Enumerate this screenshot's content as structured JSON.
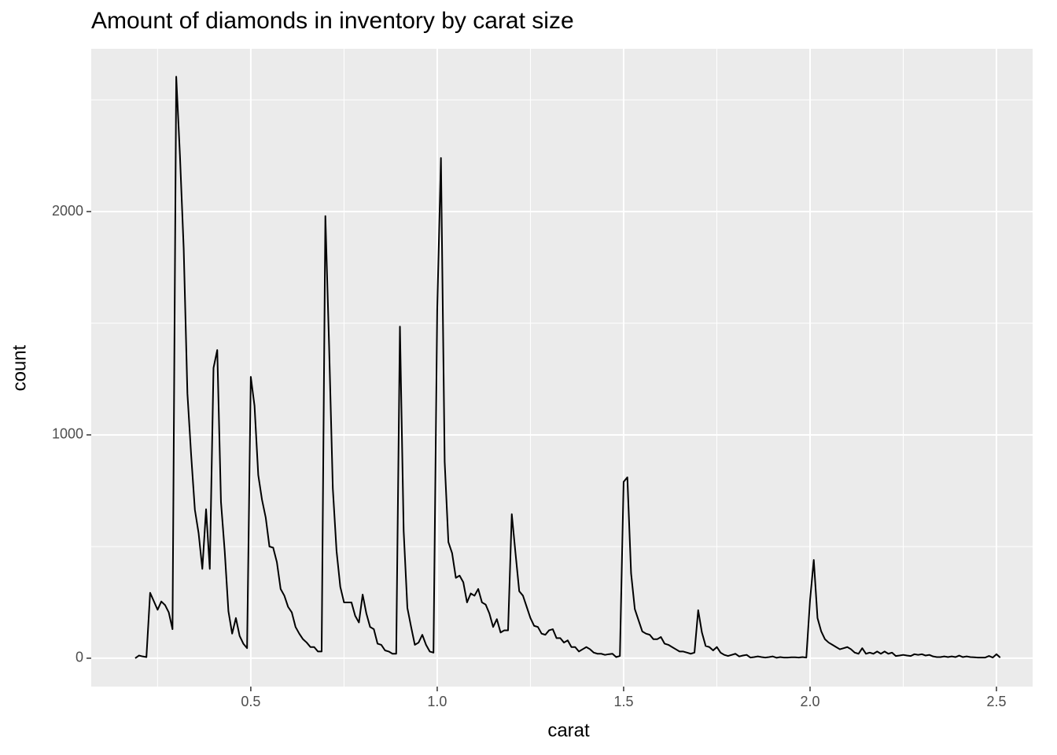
{
  "chart_data": {
    "type": "line",
    "title": "Amount of diamonds in inventory by carat size",
    "x_label": "carat",
    "y_label": "count",
    "x": [
      0.19,
      0.2,
      0.21,
      0.22,
      0.23,
      0.24,
      0.25,
      0.26,
      0.27,
      0.28,
      0.29,
      0.3,
      0.31,
      0.32,
      0.33,
      0.34,
      0.35,
      0.36,
      0.37,
      0.38,
      0.39,
      0.4,
      0.41,
      0.42,
      0.43,
      0.44,
      0.45,
      0.46,
      0.47,
      0.48,
      0.49,
      0.5,
      0.51,
      0.52,
      0.53,
      0.54,
      0.55,
      0.56,
      0.57,
      0.58,
      0.59,
      0.6,
      0.61,
      0.62,
      0.63,
      0.64,
      0.65,
      0.66,
      0.67,
      0.68,
      0.69,
      0.7,
      0.71,
      0.72,
      0.73,
      0.74,
      0.75,
      0.76,
      0.77,
      0.78,
      0.79,
      0.8,
      0.81,
      0.82,
      0.83,
      0.84,
      0.85,
      0.86,
      0.87,
      0.88,
      0.89,
      0.9,
      0.91,
      0.92,
      0.93,
      0.94,
      0.95,
      0.96,
      0.97,
      0.98,
      0.99,
      1.0,
      1.01,
      1.02,
      1.03,
      1.04,
      1.05,
      1.06,
      1.07,
      1.08,
      1.09,
      1.1,
      1.11,
      1.12,
      1.13,
      1.14,
      1.15,
      1.16,
      1.17,
      1.18,
      1.19,
      1.2,
      1.21,
      1.22,
      1.23,
      1.24,
      1.25,
      1.26,
      1.27,
      1.28,
      1.29,
      1.3,
      1.31,
      1.32,
      1.33,
      1.34,
      1.35,
      1.36,
      1.37,
      1.38,
      1.39,
      1.4,
      1.41,
      1.42,
      1.43,
      1.44,
      1.45,
      1.46,
      1.47,
      1.48,
      1.49,
      1.5,
      1.51,
      1.52,
      1.53,
      1.54,
      1.55,
      1.56,
      1.57,
      1.58,
      1.59,
      1.6,
      1.61,
      1.62,
      1.63,
      1.64,
      1.65,
      1.66,
      1.67,
      1.68,
      1.69,
      1.7,
      1.71,
      1.72,
      1.73,
      1.74,
      1.75,
      1.76,
      1.77,
      1.78,
      1.79,
      1.8,
      1.81,
      1.82,
      1.83,
      1.84,
      1.85,
      1.86,
      1.87,
      1.88,
      1.89,
      1.9,
      1.91,
      1.92,
      1.93,
      1.94,
      1.95,
      1.96,
      1.97,
      1.98,
      1.99,
      2.0,
      2.01,
      2.02,
      2.03,
      2.04,
      2.05,
      2.06,
      2.07,
      2.08,
      2.09,
      2.1,
      2.11,
      2.12,
      2.13,
      2.14,
      2.15,
      2.16,
      2.17,
      2.18,
      2.19,
      2.2,
      2.21,
      2.22,
      2.23,
      2.24,
      2.25,
      2.26,
      2.27,
      2.28,
      2.29,
      2.3,
      2.31,
      2.32,
      2.33,
      2.34,
      2.35,
      2.36,
      2.37,
      2.38,
      2.39,
      2.4,
      2.41,
      2.42,
      2.43,
      2.44,
      2.45,
      2.46,
      2.47,
      2.48,
      2.49,
      2.5,
      2.51
    ],
    "series": [
      {
        "name": "count",
        "color": "#000000",
        "values": [
          0,
          12,
          8,
          5,
          293,
          255,
          217,
          254,
          238,
          205,
          130,
          2604,
          2250,
          1835,
          1185,
          910,
          665,
          560,
          400,
          667,
          400,
          1300,
          1380,
          700,
          480,
          210,
          110,
          180,
          100,
          65,
          45,
          1260,
          1130,
          820,
          710,
          630,
          500,
          495,
          430,
          310,
          280,
          230,
          205,
          140,
          110,
          85,
          70,
          50,
          50,
          30,
          30,
          1980,
          1400,
          760,
          480,
          320,
          250,
          250,
          250,
          190,
          160,
          285,
          200,
          140,
          130,
          65,
          60,
          35,
          30,
          20,
          20,
          1485,
          570,
          225,
          140,
          60,
          70,
          105,
          60,
          30,
          25,
          1560,
          2240,
          880,
          520,
          470,
          360,
          370,
          340,
          250,
          290,
          280,
          310,
          250,
          240,
          200,
          140,
          175,
          115,
          125,
          125,
          645,
          470,
          300,
          280,
          230,
          180,
          145,
          140,
          110,
          105,
          125,
          130,
          90,
          90,
          70,
          80,
          50,
          50,
          30,
          40,
          50,
          40,
          25,
          20,
          20,
          15,
          18,
          20,
          5,
          10,
          790,
          810,
          380,
          220,
          170,
          120,
          110,
          105,
          85,
          85,
          95,
          65,
          60,
          50,
          40,
          30,
          30,
          25,
          20,
          25,
          215,
          115,
          55,
          50,
          35,
          50,
          25,
          15,
          10,
          15,
          20,
          8,
          12,
          15,
          3,
          5,
          8,
          5,
          3,
          5,
          8,
          2,
          5,
          3,
          3,
          4,
          4,
          3,
          5,
          3,
          260,
          440,
          180,
          120,
          85,
          70,
          60,
          50,
          40,
          45,
          50,
          40,
          25,
          20,
          45,
          20,
          25,
          20,
          30,
          20,
          30,
          20,
          25,
          10,
          12,
          15,
          12,
          10,
          18,
          15,
          18,
          12,
          15,
          8,
          5,
          5,
          8,
          5,
          8,
          5,
          12,
          5,
          8,
          5,
          4,
          3,
          3,
          3,
          10,
          3,
          18,
          3
        ]
      }
    ],
    "xlim": [
      0.072,
      2.597
    ],
    "ylim": [
      -127,
      2729
    ],
    "xticks": [
      {
        "value": 0.5,
        "label": "0.5"
      },
      {
        "value": 1.0,
        "label": "1.0"
      },
      {
        "value": 1.5,
        "label": "1.5"
      },
      {
        "value": 2.0,
        "label": "2.0"
      },
      {
        "value": 2.5,
        "label": "2.5"
      }
    ],
    "yticks": [
      0,
      1000,
      2000
    ],
    "grid": true
  }
}
